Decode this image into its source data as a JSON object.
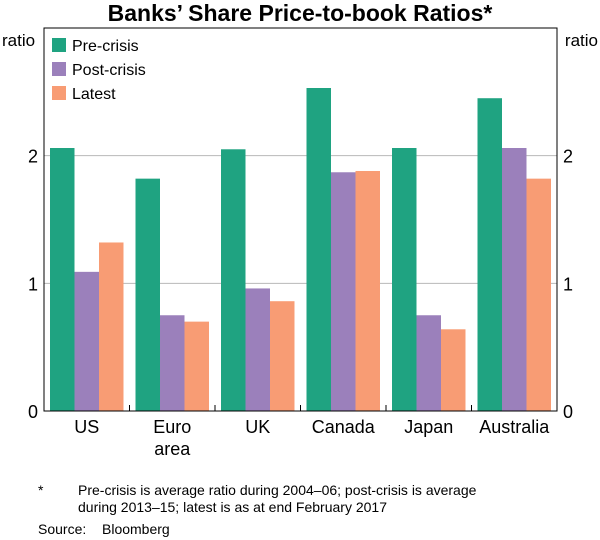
{
  "chart_data": {
    "type": "bar",
    "title": "Banks’ Share Price-to-book Ratios*",
    "ylabel_left": "ratio",
    "ylabel_right": "ratio",
    "ylim": [
      0,
      3
    ],
    "yticks": [
      "0",
      "1",
      "2"
    ],
    "categories": [
      [
        "US"
      ],
      [
        "Euro",
        "area"
      ],
      [
        "UK"
      ],
      [
        "Canada"
      ],
      [
        "Japan"
      ],
      [
        "Australia"
      ]
    ],
    "series": [
      {
        "name": "Pre-crisis",
        "color": "#1fa381",
        "values": [
          2.06,
          1.82,
          2.05,
          2.53,
          2.06,
          2.45
        ]
      },
      {
        "name": "Post-crisis",
        "color": "#9b80bb",
        "values": [
          1.09,
          0.75,
          0.96,
          1.87,
          0.75,
          2.06
        ]
      },
      {
        "name": "Latest",
        "color": "#f89c74",
        "values": [
          1.32,
          0.7,
          0.86,
          1.88,
          0.64,
          1.82
        ]
      }
    ],
    "legend_position": "top-left"
  },
  "notes": {
    "star": "*",
    "footnote_line1": "Pre-crisis is average ratio during 2004–06; post-crisis is average",
    "footnote_line2": "during 2013–15; latest is as at end February 2017",
    "source_label": "Source:",
    "source": "Bloomberg"
  }
}
